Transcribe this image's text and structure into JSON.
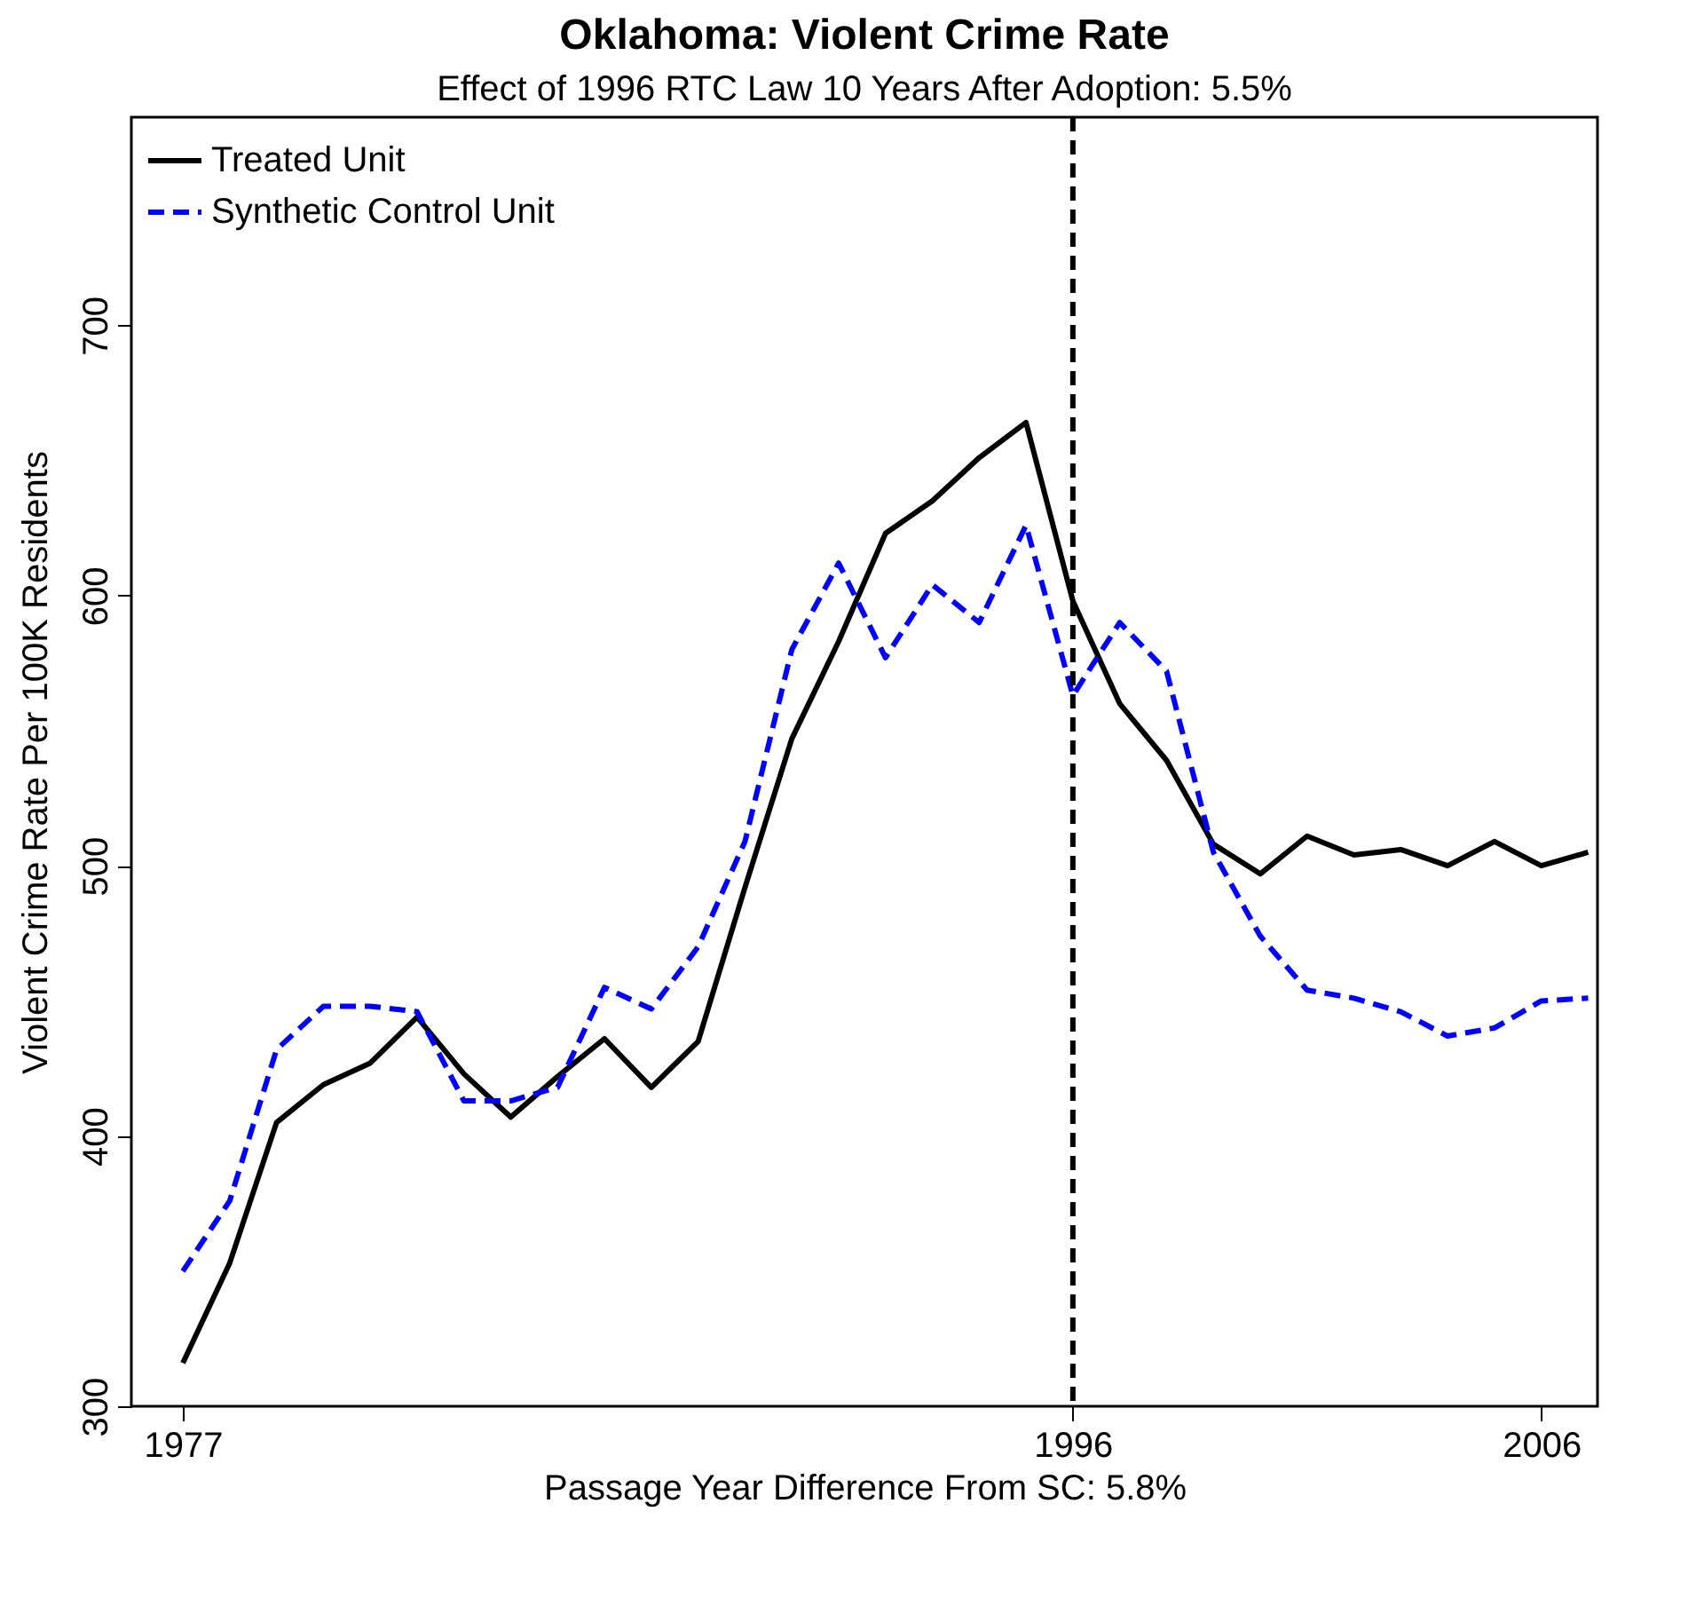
{
  "chart_data": {
    "type": "line",
    "title": "Oklahoma: Violent Crime Rate",
    "subtitle": "Effect of 1996 RTC Law 10 Years After Adoption: 5.5%",
    "xlabel": "Passage Year Difference From SC: 5.8%",
    "ylabel": "Violent Crime Rate Per 100K Residents",
    "x": [
      1977,
      1978,
      1979,
      1980,
      1981,
      1982,
      1983,
      1984,
      1985,
      1986,
      1987,
      1988,
      1989,
      1990,
      1991,
      1992,
      1993,
      1994,
      1995,
      1996,
      1997,
      1998,
      1999,
      2000,
      2001,
      2002,
      2003,
      2004,
      2005,
      2006,
      2007
    ],
    "series": [
      {
        "name": "Treated Unit",
        "color": "#000000",
        "line_style": "solid",
        "values": [
          316,
          353,
          405,
          419,
          427,
          444,
          423,
          407,
          422,
          436,
          418,
          435,
          492,
          547,
          583,
          623,
          635,
          651,
          664,
          598,
          560,
          539,
          508,
          497,
          511,
          504,
          506,
          500,
          509,
          500,
          505
        ]
      },
      {
        "name": "Synthetic Control Unit",
        "color": "#0000ff",
        "line_style": "dashed",
        "values": [
          350,
          376,
          432,
          448,
          448,
          446,
          413,
          413,
          418,
          455,
          447,
          470,
          509,
          580,
          612,
          577,
          604,
          590,
          626,
          563,
          590,
          572,
          505,
          474,
          454,
          451,
          446,
          437,
          440,
          450,
          451
        ]
      }
    ],
    "xlim": [
      1975.9,
      2007.2
    ],
    "xticks": [
      1977,
      1996,
      2006
    ],
    "ylim": [
      300,
      777
    ],
    "yticks": [
      300,
      400,
      500,
      600,
      700
    ],
    "ref_lines": [
      {
        "axis": "x",
        "value": 1996,
        "color": "#000000",
        "line_style": "dashed"
      }
    ],
    "grid": false,
    "legend": "top left",
    "marker": "none"
  }
}
